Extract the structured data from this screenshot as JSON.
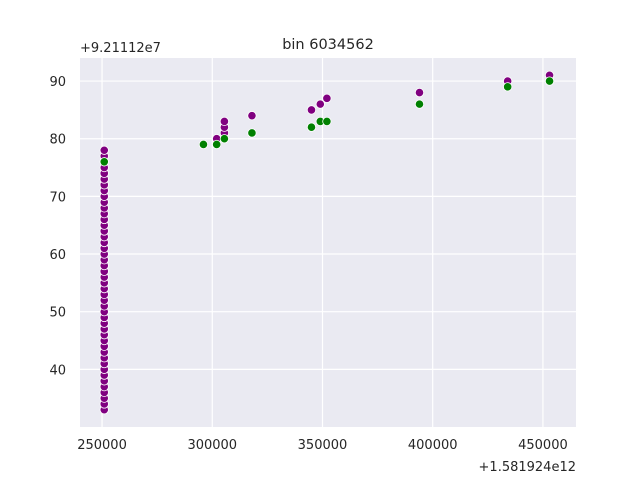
{
  "chart_data": {
    "type": "scatter",
    "title": "bin 6034562",
    "xlabel": "",
    "ylabel": "",
    "x_offset_label": "+1.581924e12",
    "y_offset_label": "+9.21112e7",
    "xlim": [
      240000,
      465000
    ],
    "ylim": [
      30,
      94
    ],
    "x_ticks": [
      250000,
      300000,
      350000,
      400000,
      450000
    ],
    "y_ticks": [
      40,
      50,
      60,
      70,
      80,
      90
    ],
    "x_tick_labels": [
      "250000",
      "300000",
      "350000",
      "400000",
      "450000"
    ],
    "y_tick_labels": [
      "40",
      "50",
      "60",
      "70",
      "80",
      "90"
    ],
    "grid": true,
    "legend": "none",
    "background_color": "#eaeaf2",
    "series": [
      {
        "color": "#800080",
        "points": [
          [
            251000,
            33
          ],
          [
            251000,
            34
          ],
          [
            251000,
            35
          ],
          [
            251000,
            36
          ],
          [
            251000,
            37
          ],
          [
            251000,
            38
          ],
          [
            251000,
            39
          ],
          [
            251000,
            40
          ],
          [
            251000,
            41
          ],
          [
            251000,
            42
          ],
          [
            251000,
            43
          ],
          [
            251000,
            44
          ],
          [
            251000,
            45
          ],
          [
            251000,
            46
          ],
          [
            251000,
            47
          ],
          [
            251000,
            48
          ],
          [
            251000,
            49
          ],
          [
            251000,
            50
          ],
          [
            251000,
            51
          ],
          [
            251000,
            52
          ],
          [
            251000,
            53
          ],
          [
            251000,
            54
          ],
          [
            251000,
            55
          ],
          [
            251000,
            56
          ],
          [
            251000,
            57
          ],
          [
            251000,
            58
          ],
          [
            251000,
            59
          ],
          [
            251000,
            60
          ],
          [
            251000,
            61
          ],
          [
            251000,
            62
          ],
          [
            251000,
            63
          ],
          [
            251000,
            64
          ],
          [
            251000,
            65
          ],
          [
            251000,
            66
          ],
          [
            251000,
            67
          ],
          [
            251000,
            68
          ],
          [
            251000,
            69
          ],
          [
            251000,
            70
          ],
          [
            251000,
            71
          ],
          [
            251000,
            72
          ],
          [
            251000,
            73
          ],
          [
            251000,
            74
          ],
          [
            251000,
            75
          ],
          [
            251000,
            76
          ],
          [
            251000,
            77
          ],
          [
            251000,
            78
          ],
          [
            302000,
            80
          ],
          [
            305500,
            81
          ],
          [
            305500,
            82
          ],
          [
            305500,
            83
          ],
          [
            318000,
            84
          ],
          [
            345000,
            85
          ],
          [
            349000,
            86
          ],
          [
            352000,
            87
          ],
          [
            394000,
            88
          ],
          [
            434000,
            90
          ],
          [
            453000,
            91
          ]
        ]
      },
      {
        "color": "#008000",
        "points": [
          [
            251000,
            76
          ],
          [
            296000,
            79
          ],
          [
            302000,
            79
          ],
          [
            305500,
            80
          ],
          [
            318000,
            81
          ],
          [
            345000,
            82
          ],
          [
            349000,
            83
          ],
          [
            352000,
            83
          ],
          [
            394000,
            86
          ],
          [
            434000,
            89
          ],
          [
            453000,
            90
          ]
        ]
      }
    ]
  }
}
